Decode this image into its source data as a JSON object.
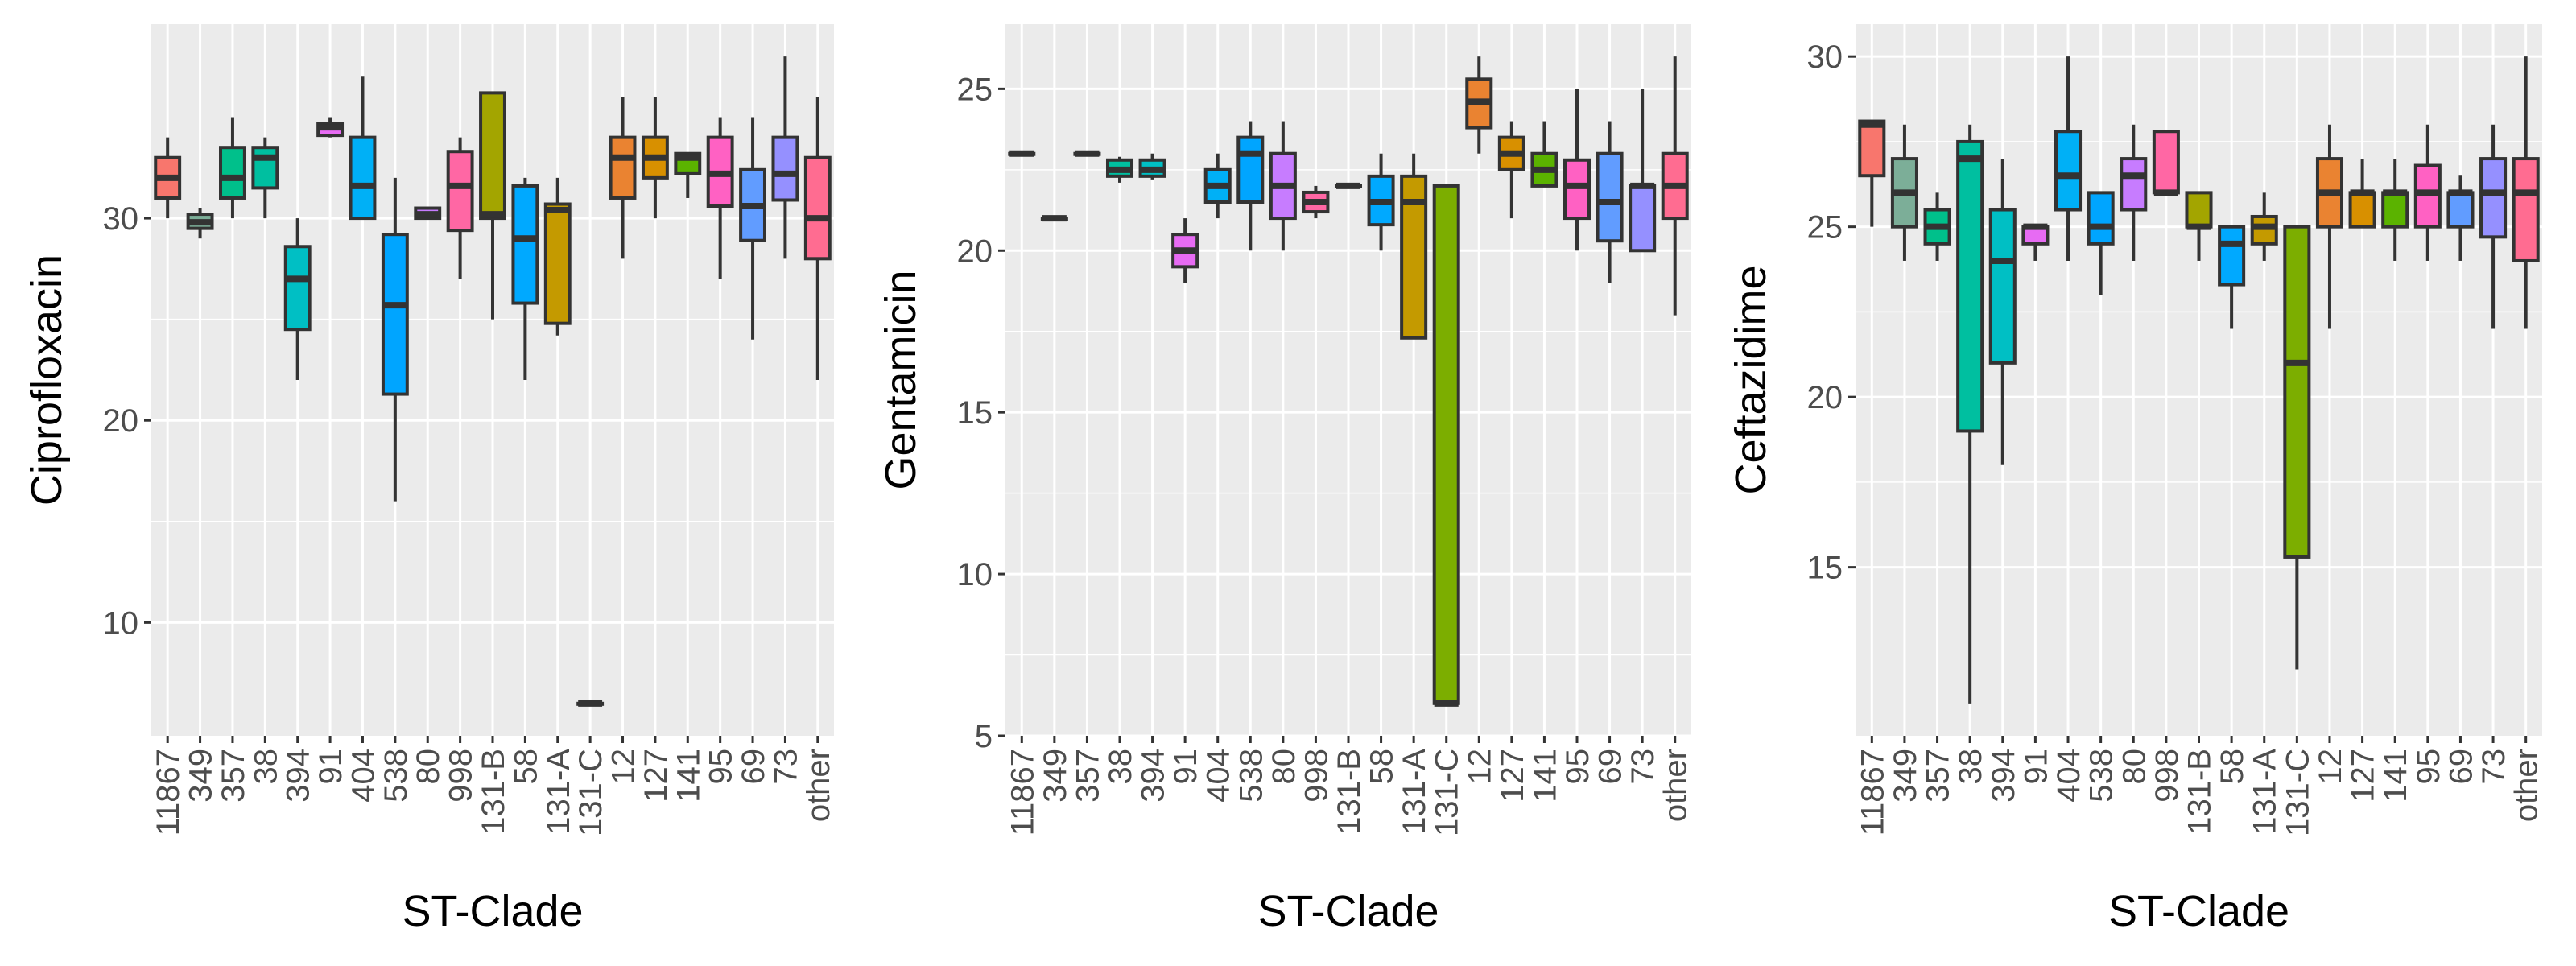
{
  "chart_data": [
    {
      "type": "box",
      "ylabel": "Ciprofloxacin",
      "xlabel": "ST-Clade",
      "categories": [
        "11867",
        "349",
        "357",
        "38",
        "394",
        "91",
        "404",
        "538",
        "80",
        "998",
        "131-B",
        "58",
        "131-A",
        "131-C",
        "12",
        "127",
        "141",
        "95",
        "69",
        "73",
        "other"
      ],
      "colors": [
        "#F8766D",
        "#7CAE98",
        "#00C08B",
        "#00BFA0",
        "#00BFC4",
        "#E76BF3",
        "#00B0F6",
        "#00A5FF",
        "#C77CFF",
        "#FF67A4",
        "#A3A500",
        "#00A9FF",
        "#C49A00",
        "#7CAE00",
        "#EA8331",
        "#D89000",
        "#5BB300",
        "#FF61C3",
        "#619CFF",
        "#9590FF",
        "#FF6C91"
      ],
      "ylim": [
        4.4,
        39.6
      ],
      "yticks": [
        10,
        20,
        30
      ],
      "grid": true,
      "whisker_low": [
        30,
        29,
        30,
        30,
        22,
        34,
        30,
        16,
        30,
        27,
        25,
        22,
        24.2,
        6,
        28,
        30,
        31,
        27,
        24,
        28,
        22
      ],
      "q1": [
        31,
        29.5,
        31,
        31.5,
        24.5,
        34.1,
        30,
        21.3,
        30,
        29.4,
        30,
        25.8,
        24.8,
        6,
        31,
        32,
        32.2,
        30.6,
        28.9,
        30.9,
        28
      ],
      "median": [
        32,
        29.8,
        32,
        33,
        27,
        34.5,
        31.6,
        25.7,
        30.2,
        31.6,
        30.2,
        29,
        30.4,
        6,
        33,
        33,
        33,
        32.2,
        30.6,
        32.2,
        30
      ],
      "q3": [
        33,
        30.2,
        33.5,
        33.5,
        28.6,
        34.7,
        34,
        29.2,
        30.5,
        33.3,
        36.2,
        31.6,
        30.7,
        6,
        34,
        34,
        33.2,
        34,
        32.4,
        34,
        33
      ],
      "whisker_high": [
        34,
        30.5,
        35,
        34,
        30,
        35,
        37,
        32,
        30.5,
        34,
        36.2,
        32,
        32,
        6,
        36,
        36,
        33.2,
        35,
        35,
        38,
        36
      ]
    },
    {
      "type": "box",
      "ylabel": "Gentamicin",
      "xlabel": "ST-Clade",
      "categories": [
        "11867",
        "349",
        "357",
        "38",
        "394",
        "91",
        "404",
        "538",
        "80",
        "998",
        "131-B",
        "58",
        "131-A",
        "131-C",
        "12",
        "127",
        "141",
        "95",
        "69",
        "73",
        "other"
      ],
      "colors": [
        "#F8766D",
        "#7CAE98",
        "#00C08B",
        "#00BFA0",
        "#00BFC4",
        "#E76BF3",
        "#00B0F6",
        "#00A5FF",
        "#C77CFF",
        "#FF67A4",
        "#A3A500",
        "#00A9FF",
        "#C49A00",
        "#7CAE00",
        "#EA8331",
        "#D89000",
        "#5BB300",
        "#FF61C3",
        "#619CFF",
        "#9590FF",
        "#FF6C91"
      ],
      "ylim": [
        5,
        27
      ],
      "yticks": [
        5,
        10,
        15,
        20,
        25
      ],
      "grid": true,
      "whisker_low": [
        23,
        21,
        23,
        22.1,
        22.2,
        19,
        21,
        20,
        20,
        21,
        22,
        20,
        17.3,
        6,
        23,
        21,
        22,
        20,
        19,
        20,
        18
      ],
      "q1": [
        23,
        21,
        23,
        22.3,
        22.3,
        19.5,
        21.5,
        21.5,
        21,
        21.2,
        22,
        20.8,
        17.3,
        6,
        23.8,
        22.5,
        22,
        21,
        20.3,
        20,
        21
      ],
      "median": [
        23,
        21,
        23,
        22.5,
        22.5,
        20,
        22,
        23,
        22,
        21.5,
        22,
        21.5,
        21.5,
        6,
        24.6,
        23,
        22.5,
        22,
        21.5,
        22,
        22
      ],
      "q3": [
        23,
        21,
        23,
        22.8,
        22.8,
        20.5,
        22.5,
        23.5,
        23,
        21.8,
        22,
        22.3,
        22.3,
        22,
        25.3,
        23.5,
        23,
        22.8,
        23,
        22,
        23
      ],
      "whisker_high": [
        23,
        21,
        23,
        22.9,
        23,
        21,
        23,
        24,
        24,
        22,
        22,
        23,
        23,
        22,
        26,
        24,
        24,
        25,
        24,
        25,
        26
      ]
    },
    {
      "type": "box",
      "ylabel": "Ceftazidime",
      "xlabel": "ST-Clade",
      "categories": [
        "11867",
        "349",
        "357",
        "38",
        "394",
        "91",
        "404",
        "538",
        "80",
        "998",
        "131-B",
        "58",
        "131-A",
        "131-C",
        "12",
        "127",
        "141",
        "95",
        "69",
        "73",
        "other"
      ],
      "colors": [
        "#F8766D",
        "#7CAE98",
        "#00C08B",
        "#00BFA0",
        "#00BFC4",
        "#E76BF3",
        "#00B0F6",
        "#00A5FF",
        "#C77CFF",
        "#FF67A4",
        "#A3A500",
        "#00A9FF",
        "#C49A00",
        "#7CAE00",
        "#EA8331",
        "#D89000",
        "#5BB300",
        "#FF61C3",
        "#619CFF",
        "#9590FF",
        "#FF6C91"
      ],
      "ylim": [
        10.05,
        30.95
      ],
      "yticks": [
        15,
        20,
        25,
        30
      ],
      "grid": true,
      "whisker_low": [
        25,
        24,
        24,
        11,
        18,
        24,
        24,
        23,
        24,
        26,
        24,
        22,
        24,
        12,
        22,
        25,
        24,
        24,
        24,
        22,
        22
      ],
      "q1": [
        26.5,
        25,
        24.5,
        19,
        21,
        24.5,
        25.5,
        24.5,
        25.5,
        26,
        25,
        23.3,
        24.5,
        15.3,
        25,
        25,
        25,
        25,
        25,
        24.7,
        24
      ],
      "median": [
        28,
        26,
        25,
        27,
        24,
        25,
        26.5,
        25,
        26.5,
        26,
        25,
        24.5,
        25,
        21,
        26,
        26,
        26,
        26,
        26,
        26,
        26
      ],
      "q3": [
        28.1,
        27,
        25.5,
        27.5,
        25.5,
        25,
        27.8,
        26,
        27,
        27.8,
        26,
        25,
        25.3,
        25,
        27,
        26,
        26,
        26.8,
        26,
        27,
        27
      ],
      "whisker_high": [
        28.1,
        28,
        26,
        28,
        27,
        25,
        30,
        26,
        28,
        27.8,
        26,
        25,
        26,
        25,
        28,
        27,
        27,
        28,
        26.5,
        28,
        30
      ]
    }
  ]
}
